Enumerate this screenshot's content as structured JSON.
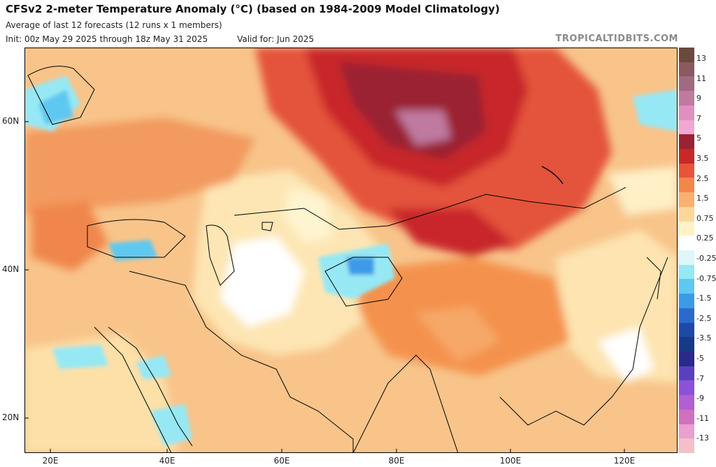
{
  "header": {
    "title": "CFSv2 2-meter Temperature Anomaly (°C) (based on 1984-2009 Model Climatology)",
    "subtitle": "Average of last 12 forecasts (12 runs x 1 members)",
    "init": "Init: 00z May 29 2025 through 18z May 31 2025",
    "valid": "Valid for: Jun 2025",
    "brand": "TROPICALTIDBITS.COM"
  },
  "axes": {
    "lat_labels": [
      "60N",
      "40N",
      "20N"
    ],
    "lon_labels": [
      "20E",
      "40E",
      "60E",
      "80E",
      "100E",
      "120E"
    ]
  },
  "colorbar": {
    "labels": [
      "13",
      "11",
      "9",
      "7",
      "5",
      "3.5",
      "2.5",
      "1.5",
      "0.75",
      "0.25",
      "-0.25",
      "-0.75",
      "-1.5",
      "-2.5",
      "-3.5",
      "-5",
      "-7",
      "-9",
      "-11",
      "-13"
    ],
    "colors": [
      "#6b4a3e",
      "#8a5a60",
      "#a06a80",
      "#c07aa0",
      "#e090c0",
      "#f0a8d0",
      "#9a2233",
      "#c8282a",
      "#e8543a",
      "#f4864c",
      "#f9b070",
      "#fcd79c",
      "#fff2c6",
      "#ffffff",
      "#dff6fa",
      "#96e8f4",
      "#5fc8f0",
      "#3c9ae6",
      "#2a6acc",
      "#1d4aa8",
      "#183888",
      "#2a2a8a",
      "#5a40c0",
      "#8a52d8",
      "#b060d0",
      "#d070c0",
      "#e8a0d0",
      "#f4c0c8"
    ]
  },
  "map": {
    "region": "Asia / Middle East",
    "lon_range": [
      15,
      130
    ],
    "lat_range": [
      15,
      70
    ]
  }
}
